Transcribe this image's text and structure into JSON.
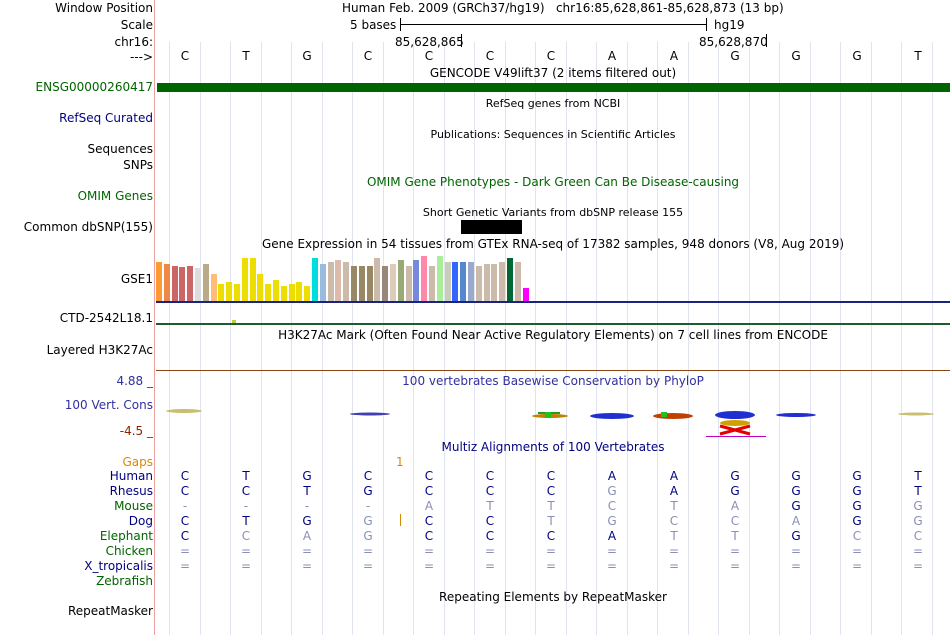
{
  "header": {
    "window_position_label": "Window Position",
    "scale_label": "Scale",
    "chrom_label": "chr16:",
    "arrow_label": "--->",
    "title": "Human Feb. 2009 (GRCh37/hg19)   chr16:85,628,861-85,628,873 (13 bp)",
    "scale_text": "5 bases",
    "assembly": "hg19",
    "pos_left": "85,628,865",
    "pos_right": "85,628,870"
  },
  "bases": [
    "C",
    "T",
    "G",
    "C",
    "C",
    "C",
    "C",
    "A",
    "A",
    "G",
    "G",
    "G",
    "T"
  ],
  "tracks": {
    "gencode_title": "GENCODE V49lift37 (2 items filtered out)",
    "gencode_item": "ENSG00000260417",
    "refseq_title": "RefSeq genes from NCBI",
    "refseq_label": "RefSeq Curated",
    "pubs_title": "Publications: Sequences in Scientific Articles",
    "sequences_label": "Sequences",
    "snps_label": "SNPs",
    "omim_title": "OMIM Gene Phenotypes - Dark Green Can Be Disease-causing",
    "omim_label": "OMIM Genes",
    "dbsnp_title": "Short Genetic Variants from dbSNP release 155",
    "dbsnp_label": "Common dbSNP(155)",
    "gtex_title": "Gene Expression in 54 tissues from GTEx RNA-seq of 17382 samples, 948 donors (V8, Aug 2019)",
    "gtex_label": "GSE1",
    "ctd_label": "CTD-2542L18.1",
    "h3k27_title": "H3K27Ac Mark (Often Found Near Active Regulatory Elements) on 7 cell lines from ENCODE",
    "h3k27_label": "Layered H3K27Ac",
    "cons_title": "100 vertebrates Basewise Conservation by PhyloP",
    "cons_max": "4.88 _",
    "cons_label": "100 Vert. Cons",
    "cons_min": "-4.5 _",
    "multiz_title": "Multiz Alignments of 100 Vertebrates",
    "gaps_label": "Gaps",
    "gaps_value": "1",
    "repeat_title": "Repeating Elements by RepeatMasker",
    "repeat_label": "RepeatMasker"
  },
  "species": [
    {
      "name": "Human",
      "color": "#000080",
      "seq": [
        "C",
        "T",
        "G",
        "C",
        "C",
        "C",
        "C",
        "A",
        "A",
        "G",
        "G",
        "G",
        "T"
      ],
      "dim": [
        0,
        0,
        0,
        0,
        0,
        0,
        0,
        0,
        0,
        0,
        0,
        0,
        0
      ]
    },
    {
      "name": "Rhesus",
      "color": "#000080",
      "seq": [
        "C",
        "C",
        "T",
        "G",
        "C",
        "C",
        "C",
        "G",
        "A",
        "G",
        "G",
        "G",
        "T"
      ],
      "dim": [
        0,
        0,
        0,
        0,
        0,
        0,
        0,
        1,
        0,
        0,
        0,
        0,
        0
      ]
    },
    {
      "name": "Mouse",
      "color": "#006400",
      "seq": [
        "-",
        "-",
        "-",
        "-",
        "A",
        "T",
        "T",
        "C",
        "T",
        "A",
        "G",
        "G",
        "G"
      ],
      "dim": [
        1,
        1,
        1,
        1,
        1,
        1,
        1,
        1,
        1,
        1,
        0,
        0,
        1
      ]
    },
    {
      "name": "Dog",
      "color": "#000080",
      "seq": [
        "C",
        "T",
        "G",
        "G",
        "C",
        "C",
        "T",
        "G",
        "C",
        "C",
        "A",
        "G",
        "G"
      ],
      "dim": [
        0,
        0,
        0,
        1,
        0,
        0,
        1,
        1,
        1,
        1,
        1,
        0,
        1
      ]
    },
    {
      "name": "Elephant",
      "color": "#006400",
      "seq": [
        "C",
        "C",
        "A",
        "G",
        "C",
        "C",
        "C",
        "A",
        "T",
        "T",
        "G",
        "C",
        "C"
      ],
      "dim": [
        0,
        1,
        1,
        1,
        0,
        0,
        0,
        0,
        1,
        1,
        0,
        1,
        1
      ]
    },
    {
      "name": "Chicken",
      "color": "#006400",
      "seq": [
        "=",
        "=",
        "=",
        "=",
        "=",
        "=",
        "=",
        "=",
        "=",
        "=",
        "=",
        "=",
        "="
      ],
      "dim": [
        1,
        1,
        1,
        1,
        1,
        1,
        1,
        1,
        1,
        1,
        1,
        1,
        1
      ]
    },
    {
      "name": "X_tropicalis",
      "color": "#000080",
      "seq": [
        "=",
        "=",
        "=",
        "=",
        "=",
        "=",
        "=",
        "=",
        "=",
        "=",
        "=",
        "=",
        "="
      ],
      "dim": [
        1,
        1,
        1,
        1,
        1,
        1,
        1,
        1,
        1,
        1,
        1,
        1,
        1
      ]
    },
    {
      "name": "Zebrafish",
      "color": "#006400",
      "seq": [],
      "dim": []
    }
  ],
  "gtex_colors": [
    "#ff9933",
    "#ee8844",
    "#cc6666",
    "#cc6666",
    "#cc6666",
    "#dddddd",
    "#bbaa88",
    "#ffbb77",
    "#eedd00",
    "#eedd00",
    "#eedd00",
    "#eedd00",
    "#eedd00",
    "#eedd00",
    "#eedd00",
    "#eedd00",
    "#eedd00",
    "#eedd00",
    "#eedd00",
    "#eedd00",
    "#00dddd",
    "#99bbdd",
    "#ccbbaa",
    "#ddbbaa",
    "#ccbbaa",
    "#998866",
    "#998866",
    "#998866",
    "#ccbbaa",
    "#99887a",
    "#ddccbb",
    "#99aa77",
    "#ccbbaa",
    "#7788dd",
    "#ff88aa",
    "#ccbbaa",
    "#aaee99",
    "#ccccbb",
    "#3366ff",
    "#5588cc",
    "#99aacc",
    "#ccbbaa",
    "#ccbbaa",
    "#ccbbaa",
    "#ccbbaa",
    "#006633",
    "#ccbbaa",
    "#ff00ff"
  ],
  "gtex_values": [
    40,
    38,
    36,
    35,
    36,
    34,
    38,
    28,
    18,
    20,
    18,
    44,
    44,
    28,
    18,
    22,
    16,
    18,
    20,
    16,
    44,
    38,
    40,
    42,
    40,
    36,
    36,
    36,
    44,
    36,
    38,
    42,
    36,
    42,
    46,
    36,
    46,
    40,
    40,
    40,
    40,
    36,
    38,
    38,
    40,
    44,
    40,
    14
  ],
  "colors": {
    "gencode": "#006400",
    "navy": "#000080",
    "title_navy": "#1f2e7a",
    "green": "#006400",
    "orange": "#d98b00",
    "red_brown": "#8b2500",
    "cons_blue": "#3030a0"
  }
}
